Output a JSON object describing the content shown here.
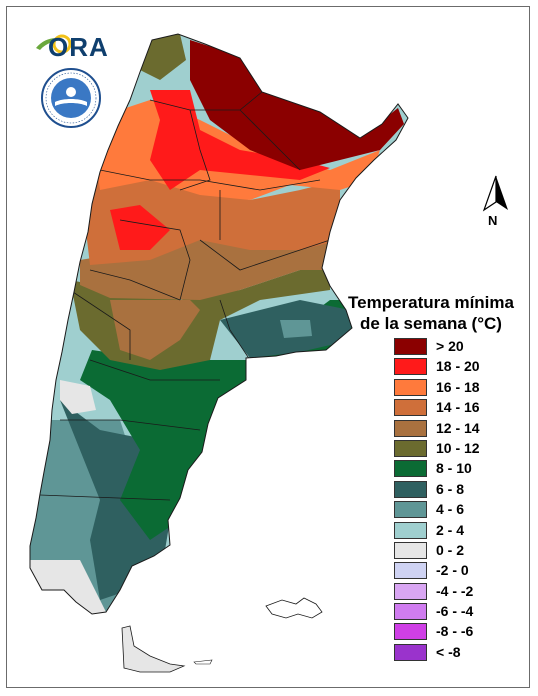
{
  "logos": {
    "ora_text": "ORA",
    "ring_text": "SERVICIO METEOROLOGICO NACIONAL ARGENTINA"
  },
  "north_arrow": {
    "letter": "N"
  },
  "legend": {
    "title_line1": "Temperatura mínima",
    "title_line2": "de la semana (°C)",
    "items": [
      {
        "label": "> 20",
        "color": "#8b0000"
      },
      {
        "label": "18 - 20",
        "color": "#ff1a1a"
      },
      {
        "label": "16 - 18",
        "color": "#ff7a3c"
      },
      {
        "label": "14 - 16",
        "color": "#cf6f3a"
      },
      {
        "label": "12 - 14",
        "color": "#a9713f"
      },
      {
        "label": "10 - 12",
        "color": "#6b6b2f"
      },
      {
        "label": "8 - 10",
        "color": "#0b6b34"
      },
      {
        "label": "6 - 8",
        "color": "#2f6060"
      },
      {
        "label": "4 - 6",
        "color": "#5f9696"
      },
      {
        "label": "2 - 4",
        "color": "#9fcfcf"
      },
      {
        "label": "0 - 2",
        "color": "#e6e6e6"
      },
      {
        "label": "-2 - 0",
        "color": "#cfd3f3"
      },
      {
        "label": "-4 - -2",
        "color": "#d9a6f3"
      },
      {
        "label": "-6 - -4",
        "color": "#d07cf0"
      },
      {
        "label": "-8 - -6",
        "color": "#cf3fe6"
      },
      {
        "label": "< -8",
        "color": "#9a33cc"
      }
    ]
  }
}
